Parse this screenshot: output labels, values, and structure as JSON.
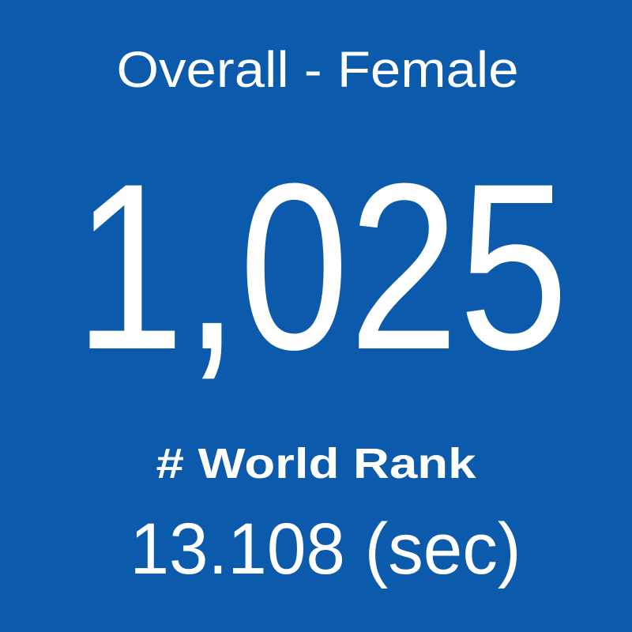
{
  "tile": {
    "title": "Overall - Female",
    "value": "1,025",
    "label": "# World Rank",
    "time": "13.108 (sec)"
  }
}
